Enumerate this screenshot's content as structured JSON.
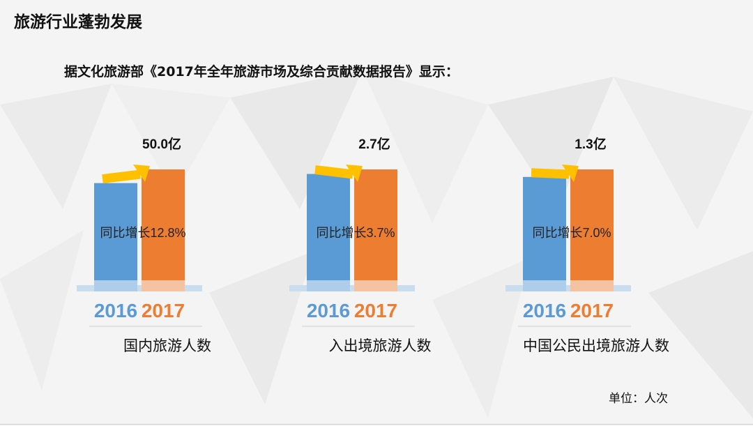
{
  "header": {
    "title": "旅游行业蓬勃发展",
    "subtitle": "据文化旅游部《2017年全年旅游市场及综合贡献数据报告》显示："
  },
  "unit_note": "单位：人次",
  "colors": {
    "bar_2016": "#5b9bd5",
    "bar_2017": "#ed7d31",
    "arrow": "#ffc000",
    "base_band": "#c9ddef",
    "base_2016": "#aecdea",
    "base_2017": "#f5c3a2"
  },
  "chart_data": [
    {
      "type": "bar",
      "categories": [
        "2016",
        "2017"
      ],
      "values": [
        44.4,
        50.0
      ],
      "value_unit": "亿",
      "category_label": "国内旅游人数",
      "value_label": "50.0亿",
      "growth_label": "同比增长12.8%"
    },
    {
      "type": "bar",
      "categories": [
        "2016",
        "2017"
      ],
      "values": [
        2.6,
        2.7
      ],
      "value_unit": "亿",
      "category_label": "入出境旅游人数",
      "value_label": "2.7亿",
      "growth_label": "同比增长3.7%"
    },
    {
      "type": "bar",
      "categories": [
        "2016",
        "2017"
      ],
      "values": [
        1.22,
        1.3
      ],
      "value_unit": "亿",
      "category_label": "中国公民出境旅游人数",
      "value_label": "1.3亿",
      "growth_label": "同比增长7.0%"
    }
  ]
}
